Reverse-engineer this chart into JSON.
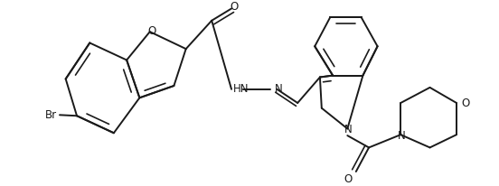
{
  "bg_color": "#ffffff",
  "line_color": "#1a1a1a",
  "lw": 1.4,
  "figsize": [
    5.52,
    2.06
  ],
  "dpi": 100,
  "xlim": [
    0,
    552
  ],
  "ylim": [
    0,
    206
  ]
}
